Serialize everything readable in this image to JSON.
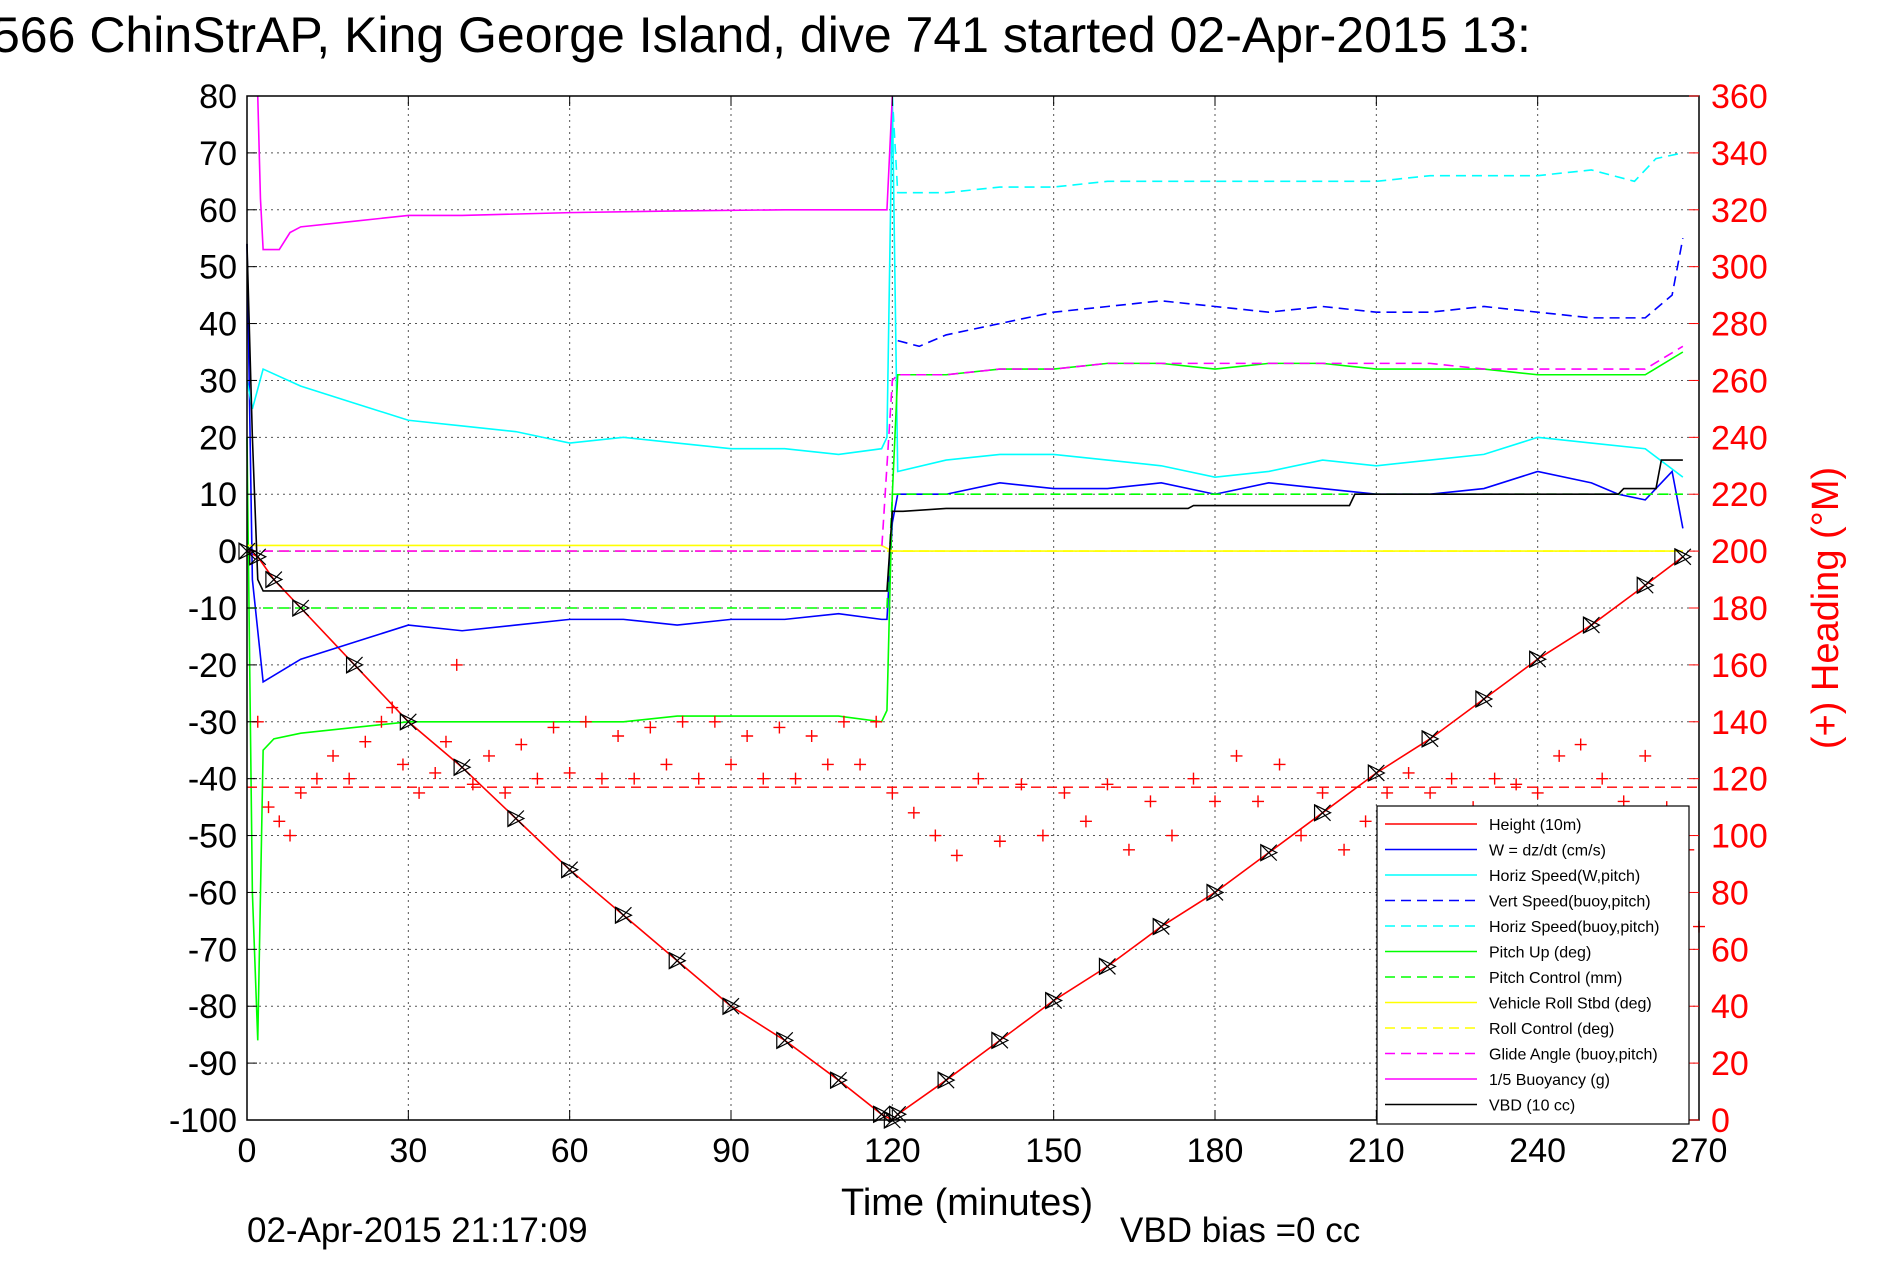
{
  "chart_data": {
    "type": "line",
    "title": "566 ChinStrAP, King George Island, dive 741 started 02-Apr-2015 13:",
    "xlabel": "Time (minutes)",
    "ylabel_right": "(+) Heading (°M)",
    "footer_left": "02-Apr-2015 21:17:09",
    "footer_right": "VBD bias =0 cc",
    "xlim": [
      0,
      270
    ],
    "ylim": [
      -100,
      80
    ],
    "y2lim": [
      0,
      360
    ],
    "xticks": [
      0,
      30,
      60,
      90,
      120,
      150,
      180,
      210,
      240,
      270
    ],
    "yticks": [
      80,
      70,
      60,
      50,
      40,
      30,
      20,
      10,
      0,
      -10,
      -20,
      -30,
      -40,
      -50,
      -60,
      -70,
      -80,
      -90,
      -100
    ],
    "y2ticks": [
      360,
      340,
      320,
      300,
      280,
      260,
      240,
      220,
      200,
      180,
      160,
      140,
      120,
      100,
      80,
      60,
      40,
      20,
      0
    ],
    "grid": true,
    "legend_position": "bottom-right",
    "series": [
      {
        "name": "Height (10m)",
        "color": "#ff0000",
        "style": "solid",
        "x": [
          0,
          2,
          5,
          10,
          20,
          30,
          40,
          50,
          60,
          70,
          80,
          90,
          100,
          110,
          118,
          120,
          121,
          130,
          140,
          150,
          160,
          170,
          180,
          190,
          200,
          210,
          220,
          230,
          240,
          250,
          260,
          267
        ],
        "values": [
          0,
          -1,
          -5,
          -10,
          -20,
          -30,
          -38,
          -47,
          -56,
          -64,
          -72,
          -80,
          -86,
          -93,
          -99,
          -100,
          -99,
          -93,
          -86,
          -79,
          -73,
          -66,
          -60,
          -53,
          -46,
          -39,
          -33,
          -26,
          -19,
          -13,
          -6,
          -1
        ]
      },
      {
        "name": "W = dz/dt (cm/s)",
        "color": "#0000ff",
        "style": "solid",
        "x": [
          0,
          1,
          3,
          10,
          20,
          30,
          40,
          50,
          60,
          70,
          80,
          90,
          100,
          110,
          118,
          119,
          120,
          121,
          130,
          140,
          150,
          160,
          170,
          180,
          190,
          200,
          210,
          220,
          230,
          240,
          250,
          255,
          260,
          265,
          267
        ],
        "values": [
          54,
          -5,
          -23,
          -19,
          -16,
          -13,
          -14,
          -13,
          -12,
          -12,
          -13,
          -12,
          -12,
          -11,
          -12,
          -12,
          5,
          10,
          10,
          12,
          11,
          11,
          12,
          10,
          12,
          11,
          10,
          10,
          11,
          14,
          12,
          10,
          9,
          14,
          4
        ]
      },
      {
        "name": "Horiz Speed(W,pitch)",
        "color": "#00ffff",
        "style": "solid",
        "x": [
          0,
          1,
          3,
          10,
          20,
          30,
          40,
          50,
          60,
          70,
          80,
          90,
          100,
          110,
          118,
          119,
          120,
          121,
          130,
          140,
          150,
          160,
          170,
          180,
          190,
          200,
          210,
          220,
          230,
          240,
          250,
          260,
          267
        ],
        "values": [
          30,
          25,
          32,
          29,
          26,
          23,
          22,
          21,
          19,
          20,
          19,
          18,
          18,
          17,
          18,
          20,
          80,
          14,
          16,
          17,
          17,
          16,
          15,
          13,
          14,
          16,
          15,
          16,
          17,
          20,
          19,
          18,
          13
        ]
      },
      {
        "name": "Vert Speed(buoy,pitch)",
        "color": "#0000ff",
        "style": "dashed",
        "x": [
          121,
          125,
          130,
          140,
          150,
          160,
          170,
          180,
          190,
          200,
          210,
          220,
          230,
          240,
          250,
          260,
          265,
          267
        ],
        "values": [
          37,
          36,
          38,
          40,
          42,
          43,
          44,
          43,
          42,
          43,
          42,
          42,
          43,
          42,
          41,
          41,
          45,
          55
        ]
      },
      {
        "name": "Horiz Speed(buoy,pitch)",
        "color": "#00ffff",
        "style": "dashed",
        "x": [
          120,
          121,
          130,
          140,
          150,
          160,
          170,
          180,
          190,
          200,
          210,
          220,
          230,
          240,
          250,
          258,
          262,
          267
        ],
        "values": [
          80,
          63,
          63,
          64,
          64,
          65,
          65,
          65,
          65,
          65,
          65,
          66,
          66,
          66,
          67,
          65,
          69,
          70
        ]
      },
      {
        "name": "Pitch Up (deg)",
        "color": "#00ff00",
        "style": "solid",
        "x": [
          0,
          1,
          2,
          3,
          5,
          10,
          20,
          30,
          40,
          50,
          60,
          70,
          80,
          90,
          100,
          110,
          118,
          119,
          120,
          121,
          130,
          140,
          150,
          160,
          170,
          180,
          190,
          200,
          210,
          220,
          230,
          240,
          250,
          260,
          267
        ],
        "values": [
          20,
          -60,
          -86,
          -35,
          -33,
          -32,
          -31,
          -30,
          -30,
          -30,
          -30,
          -30,
          -29,
          -29,
          -29,
          -29,
          -30,
          -28,
          10,
          31,
          31,
          32,
          32,
          33,
          33,
          32,
          33,
          33,
          32,
          32,
          32,
          31,
          31,
          31,
          35
        ]
      },
      {
        "name": "Pitch Control (mm)",
        "color": "#00ff00",
        "style": "dashed",
        "x": [
          0,
          2,
          5,
          118,
          119,
          120,
          267
        ],
        "values": [
          -10,
          -10,
          -10,
          -10,
          -10,
          10,
          10
        ]
      },
      {
        "name": "Vehicle Roll Stbd (deg)",
        "color": "#ffff00",
        "style": "solid",
        "x": [
          0,
          20,
          40,
          60,
          80,
          100,
          118,
          120,
          140,
          160,
          180,
          200,
          220,
          240,
          260,
          267
        ],
        "values": [
          1,
          1,
          1,
          1,
          1,
          1,
          1,
          0,
          0,
          0,
          0,
          0,
          0,
          0,
          0,
          0
        ]
      },
      {
        "name": "Roll Control (deg)",
        "color": "#ffff00",
        "style": "dashed",
        "x": [
          0,
          118,
          120,
          267
        ],
        "values": [
          0,
          0,
          0,
          0
        ]
      },
      {
        "name": "Glide Angle (buoy,pitch)",
        "color": "#ff00ff",
        "style": "dashed",
        "x": [
          0,
          118,
          120,
          121,
          130,
          140,
          150,
          160,
          170,
          180,
          190,
          200,
          210,
          220,
          230,
          240,
          250,
          260,
          267
        ],
        "values": [
          0,
          0,
          30,
          31,
          31,
          32,
          32,
          33,
          33,
          33,
          33,
          33,
          33,
          33,
          32,
          32,
          32,
          32,
          36
        ]
      },
      {
        "name": "1/5 Buoyancy (g)",
        "color": "#ff00ff",
        "style": "solid",
        "x": [
          2,
          2.5,
          3,
          6,
          8,
          10,
          20,
          30,
          40,
          60,
          80,
          100,
          118,
          119,
          120
        ],
        "values": [
          80,
          62,
          53,
          53,
          56,
          57,
          58,
          59,
          59,
          59.5,
          59.8,
          60,
          60,
          60,
          80
        ]
      },
      {
        "name": "VBD (10 cc)",
        "color": "#000000",
        "style": "solid",
        "x": [
          0,
          1,
          2,
          3,
          118,
          119,
          120,
          122,
          130,
          160,
          175,
          176,
          205,
          206,
          255,
          256,
          262,
          263,
          267
        ],
        "values": [
          54,
          20,
          -5,
          -7,
          -7,
          -7,
          7,
          7,
          7.5,
          7.5,
          7.5,
          8,
          8,
          10,
          10,
          11,
          11,
          16,
          16
        ]
      }
    ],
    "heading_series": {
      "name": "Heading",
      "axis": "right",
      "color": "#ff0000",
      "marker": "+",
      "x": [
        2,
        4,
        6,
        8,
        10,
        13,
        16,
        19,
        22,
        25,
        27,
        29,
        32,
        35,
        37,
        39,
        42,
        45,
        48,
        51,
        54,
        57,
        60,
        63,
        66,
        69,
        72,
        75,
        78,
        81,
        84,
        87,
        90,
        93,
        96,
        99,
        102,
        105,
        108,
        111,
        114,
        117,
        120,
        124,
        128,
        132,
        136,
        140,
        144,
        148,
        152,
        156,
        160,
        164,
        168,
        172,
        176,
        180,
        184,
        188,
        192,
        196,
        200,
        204,
        208,
        212,
        216,
        220,
        224,
        228,
        232,
        236,
        240,
        244,
        248,
        252,
        256,
        260,
        264,
        268,
        270
      ],
      "values": [
        140,
        110,
        105,
        100,
        115,
        120,
        128,
        120,
        133,
        140,
        145,
        125,
        115,
        122,
        133,
        160,
        118,
        128,
        115,
        132,
        120,
        138,
        122,
        140,
        120,
        135,
        120,
        138,
        125,
        140,
        120,
        140,
        125,
        135,
        120,
        138,
        120,
        135,
        125,
        140,
        125,
        140,
        115,
        108,
        100,
        93,
        120,
        98,
        118,
        100,
        115,
        105,
        118,
        95,
        112,
        100,
        120,
        112,
        128,
        112,
        125,
        100,
        115,
        95,
        105,
        115,
        122,
        115,
        120,
        110,
        120,
        118,
        115,
        128,
        132,
        120,
        112,
        128,
        110,
        95,
        68
      ]
    },
    "heading_mean": {
      "color": "#ff0000",
      "style": "dashed",
      "value_right": 117
    }
  }
}
